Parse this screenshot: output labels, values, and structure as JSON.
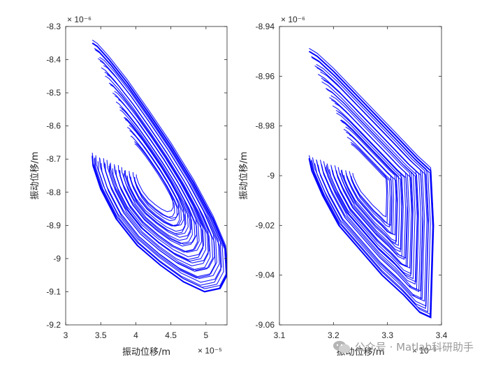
{
  "chart_data": [
    {
      "type": "line",
      "title": "",
      "xlabel": "振动位移/m",
      "ylabel": "振动位移/m",
      "x_exponent": "× 10⁻⁵",
      "y_exponent": "× 10⁻⁶",
      "xlim": [
        3,
        5.3
      ],
      "ylim": [
        -9.2,
        -8.3
      ],
      "x_ticks": [
        3,
        3.5,
        4,
        4.5,
        5
      ],
      "x_tick_labels": [
        "3",
        "3.5",
        "4",
        "4.5",
        "5"
      ],
      "y_ticks": [
        -9.2,
        -9.1,
        -9.0,
        -8.9,
        -8.8,
        -8.7,
        -8.6,
        -8.5,
        -8.4,
        -8.3
      ],
      "y_tick_labels": [
        "-9.2",
        "-9.1",
        "-9",
        "-8.9",
        "-8.8",
        "-8.7",
        "-8.6",
        "-8.5",
        "-8.4",
        "-8.3"
      ],
      "grid": false,
      "series": [
        {
          "color": "#0000ff",
          "x": [
            3.38,
            3.45,
            3.62,
            3.88,
            4.18,
            4.5,
            4.82,
            5.1,
            5.28,
            5.3,
            5.2,
            4.98,
            4.68,
            4.35,
            4.02,
            3.72,
            3.5,
            3.39,
            3.38
          ],
          "y": [
            -8.35,
            -8.36,
            -8.4,
            -8.47,
            -8.56,
            -8.66,
            -8.77,
            -8.88,
            -8.97,
            -9.05,
            -9.09,
            -9.1,
            -9.07,
            -9.02,
            -8.96,
            -8.88,
            -8.79,
            -8.72,
            -8.69
          ]
        }
      ]
    },
    {
      "type": "line",
      "title": "",
      "xlabel": "振动位移/m",
      "ylabel": "振动位移/m",
      "x_exponent": "× 10⁻⁶",
      "y_exponent": "× 10⁻⁶",
      "xlim": [
        3.1,
        3.4
      ],
      "ylim": [
        -9.06,
        -8.94
      ],
      "x_ticks": [
        3.1,
        3.2,
        3.3,
        3.4
      ],
      "x_tick_labels": [
        "3.1",
        "3.2",
        "3.3",
        "3.4"
      ],
      "y_ticks": [
        -9.06,
        -9.04,
        -9.02,
        -9.0,
        -8.98,
        -8.96,
        -8.94
      ],
      "y_tick_labels": [
        "-9.06",
        "-9.04",
        "-9.02",
        "-9",
        "-8.98",
        "-8.96",
        "-8.94"
      ],
      "grid": false,
      "series": [
        {
          "color": "#0000ff",
          "x": [
            3.155,
            3.17,
            3.2,
            3.24,
            3.28,
            3.32,
            3.355,
            3.38,
            3.385,
            3.38,
            3.36,
            3.33,
            3.29,
            3.25,
            3.21,
            3.18,
            3.16,
            3.155
          ],
          "y": [
            -8.95,
            -8.952,
            -8.958,
            -8.967,
            -8.976,
            -8.985,
            -8.993,
            -8.998,
            -9.02,
            -9.057,
            -9.055,
            -9.048,
            -9.04,
            -9.03,
            -9.02,
            -9.008,
            -8.998,
            -8.993
          ]
        }
      ]
    }
  ],
  "watermark": {
    "text": "公众号 · Matlab科研助手",
    "icon": "wechat-icon"
  }
}
